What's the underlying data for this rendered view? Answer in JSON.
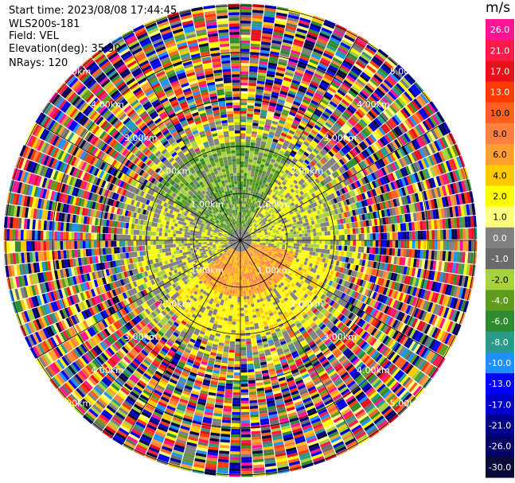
{
  "info": {
    "start_time": "Start time: 2023/08/08 17:44:45",
    "instrument": "WLS200s-181",
    "field": "Field: VEL",
    "elevation": "Elevation(deg): 35.30",
    "nrays": "NRays: 120"
  },
  "colorbar": {
    "unit": "m/s",
    "ticks": [
      "26.0",
      "21.0",
      "17.0",
      "13.0",
      "10.0",
      "8.0",
      "6.0",
      "4.0",
      "2.0",
      "1.0",
      "0.0",
      "-1.0",
      "-2.0",
      "-4.0",
      "-6.0",
      "-8.0",
      "-10.0",
      "-13.0",
      "-17.0",
      "-21.0",
      "-26.0",
      "-30.0"
    ],
    "colors": [
      "#ff1493",
      "#ff1a4a",
      "#e8101a",
      "#ff3a00",
      "#ff6020",
      "#ff8040",
      "#ffa030",
      "#ffc800",
      "#ffff00",
      "#ffff80",
      "#808080",
      "#6b6b6b",
      "#a8d23c",
      "#5f9c1e",
      "#2e8b2e",
      "#2a9a8a",
      "#1e90ff",
      "#0000ff",
      "#0000cc",
      "#00008b",
      "#000066",
      "#0a0a3a"
    ]
  },
  "chart_data": {
    "type": "ppi",
    "field": "VEL",
    "units": "m/s",
    "nrays": 120,
    "elevation_deg": 35.3,
    "range_rings_km": [
      1.0,
      2.0,
      3.0,
      4.0,
      5.0
    ],
    "range_labels": [
      "1.00km",
      "2.00km",
      "3.00km",
      "4.00km",
      "5.00km"
    ],
    "value_range": [
      -30.0,
      26.0
    ]
  }
}
